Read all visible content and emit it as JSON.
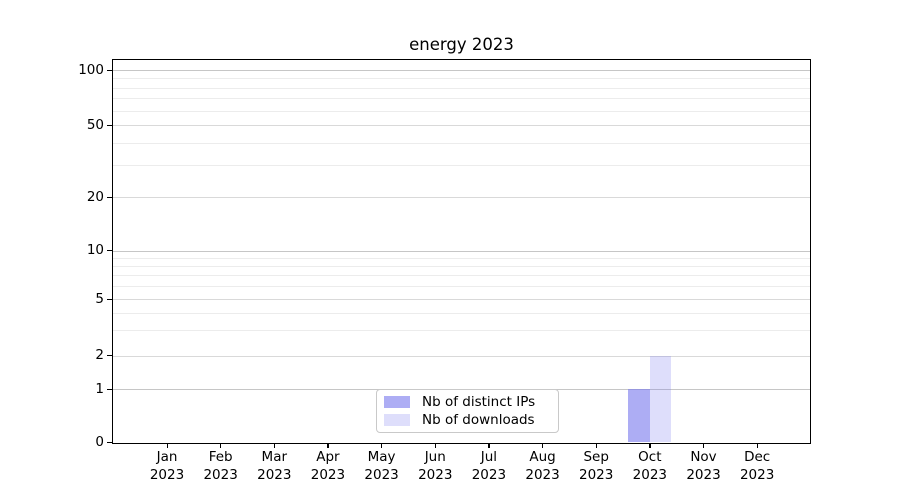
{
  "figure": {
    "title": "energy 2023"
  },
  "chart_data": {
    "type": "bar",
    "title": "energy 2023",
    "categories": [
      "Jan",
      "Feb",
      "Mar",
      "Apr",
      "May",
      "Jun",
      "Jul",
      "Aug",
      "Sep",
      "Oct",
      "Nov",
      "Dec"
    ],
    "category_year": "2023",
    "series": [
      {
        "name": "Nb of distinct IPs",
        "color": "rgba(122,122,238,0.62)",
        "values": [
          0,
          0,
          0,
          0,
          0,
          0,
          0,
          0,
          0,
          1,
          0,
          0
        ]
      },
      {
        "name": "Nb of downloads",
        "color": "rgba(122,122,238,0.25)",
        "values": [
          0,
          0,
          0,
          0,
          0,
          0,
          0,
          0,
          0,
          2,
          0,
          0
        ]
      }
    ],
    "xlabel": "",
    "ylabel": "",
    "yscale": "symlog",
    "ylim": [
      0,
      113
    ],
    "y_major_ticks": [
      0,
      1,
      2,
      5,
      10,
      20,
      50,
      100
    ],
    "y_minor_gridlines": [
      3,
      4,
      6,
      7,
      8,
      9,
      30,
      40,
      60,
      70,
      80,
      90
    ],
    "grid": "horizontal major+minor",
    "legend_position": "lower center",
    "frame_color": "#000000",
    "grid_color_major": "#c6c6c6",
    "grid_color_minor": "#ececec"
  }
}
